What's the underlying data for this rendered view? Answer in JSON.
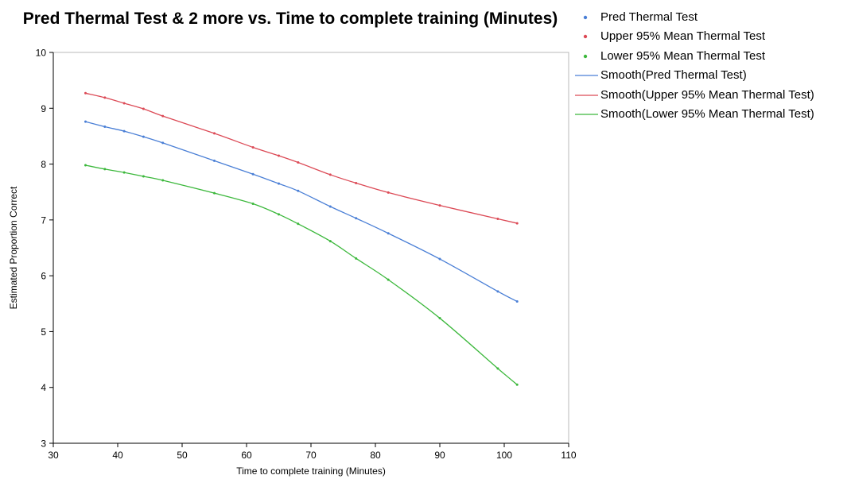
{
  "chart_data": {
    "type": "line",
    "title": "Pred Thermal Test & 2 more vs. Time to complete training (Minutes)",
    "xlabel": "Time to complete training (Minutes)",
    "ylabel": "Estimated Proportion Correct",
    "xlim": [
      30,
      110
    ],
    "ylim": [
      3,
      10
    ],
    "xticks": [
      30,
      40,
      50,
      60,
      70,
      80,
      90,
      100,
      110
    ],
    "yticks": [
      3,
      4,
      5,
      6,
      7,
      8,
      9,
      10
    ],
    "grid": false,
    "legend_position": "right",
    "x": [
      35,
      38,
      41,
      44,
      47,
      55,
      61,
      65,
      68,
      73,
      77,
      82,
      90,
      99,
      102
    ],
    "series": [
      {
        "name": "Pred Thermal Test",
        "color": "#4a7fd6",
        "values": [
          8.76,
          8.67,
          8.59,
          8.49,
          8.38,
          8.06,
          7.82,
          7.65,
          7.52,
          7.24,
          7.03,
          6.76,
          6.3,
          5.72,
          5.54
        ]
      },
      {
        "name": "Upper 95% Mean Thermal Test",
        "color": "#dc4a56",
        "values": [
          9.27,
          9.19,
          9.09,
          8.99,
          8.86,
          8.55,
          8.3,
          8.15,
          8.03,
          7.81,
          7.66,
          7.49,
          7.26,
          7.02,
          6.94
        ]
      },
      {
        "name": "Lower 95% Mean Thermal Test",
        "color": "#3cb83c",
        "values": [
          7.98,
          7.91,
          7.85,
          7.78,
          7.71,
          7.48,
          7.29,
          7.1,
          6.93,
          6.62,
          6.31,
          5.93,
          5.24,
          4.34,
          4.05
        ]
      }
    ],
    "legend": [
      {
        "label": "Pred Thermal Test",
        "kind": "point",
        "color": "#4a7fd6"
      },
      {
        "label": "Upper 95% Mean Thermal Test",
        "kind": "point",
        "color": "#dc4a56"
      },
      {
        "label": "Lower 95% Mean Thermal Test",
        "kind": "point",
        "color": "#3cb83c"
      },
      {
        "label": "Smooth(Pred Thermal Test)",
        "kind": "line",
        "color": "#4a7fd6"
      },
      {
        "label": "Smooth(Upper 95% Mean Thermal Test)",
        "kind": "line",
        "color": "#dc4a56"
      },
      {
        "label": "Smooth(Lower 95% Mean Thermal Test)",
        "kind": "line",
        "color": "#3cb83c"
      }
    ]
  }
}
